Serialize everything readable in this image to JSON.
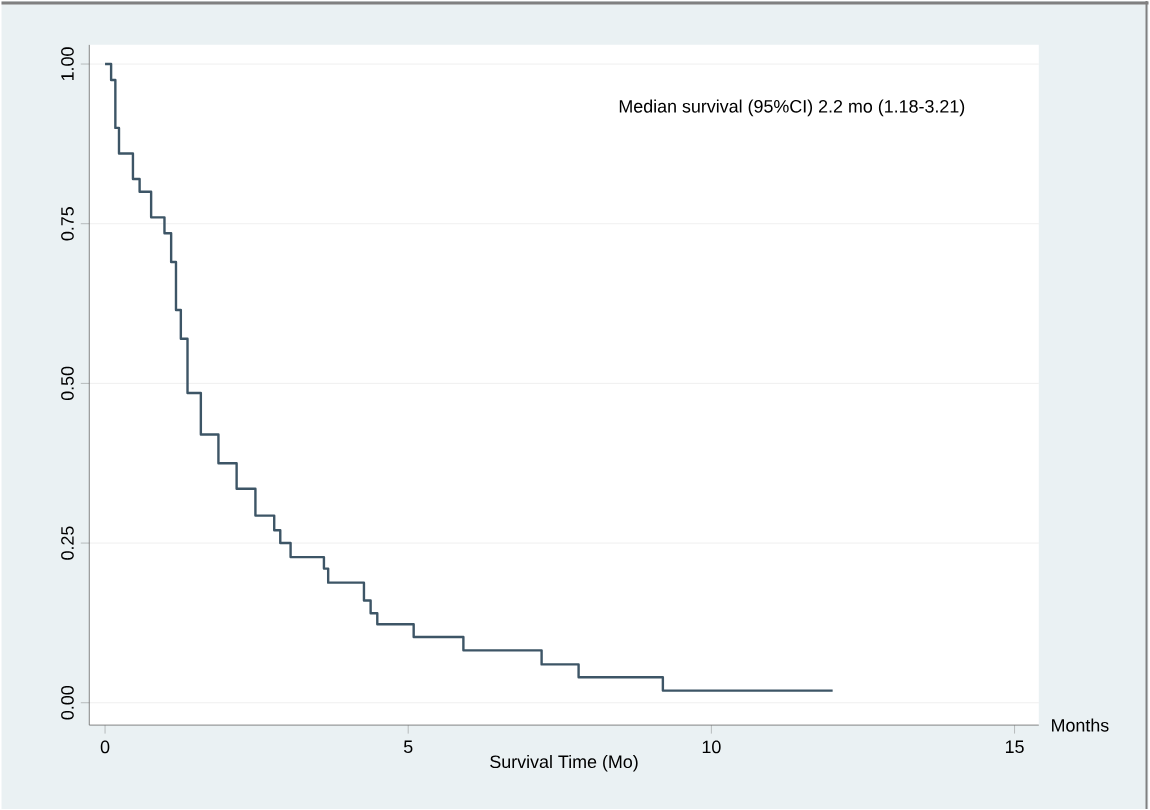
{
  "chart_data": {
    "type": "step",
    "x": [
      0,
      0.1,
      0.17,
      0.23,
      0.46,
      0.57,
      0.76,
      0.98,
      1.09,
      1.17,
      1.25,
      1.36,
      1.58,
      1.87,
      2.17,
      2.48,
      2.79,
      2.89,
      3.06,
      3.61,
      3.68,
      4.27,
      4.38,
      4.49,
      5.09,
      5.91,
      7.2,
      7.81,
      9.2,
      12.0
    ],
    "values": [
      1.0,
      0.975,
      0.9,
      0.86,
      0.82,
      0.8,
      0.76,
      0.735,
      0.69,
      0.615,
      0.57,
      0.485,
      0.42,
      0.375,
      0.335,
      0.293,
      0.27,
      0.25,
      0.228,
      0.21,
      0.188,
      0.16,
      0.14,
      0.123,
      0.103,
      0.082,
      0.06,
      0.04,
      0.019,
      0.019
    ],
    "color": "#3d5566",
    "xlabel": "Survival Time (Mo)",
    "xlim": [
      -0.26,
      15.4
    ],
    "xticks": [
      0,
      5,
      10,
      15
    ],
    "ylim": [
      -0.035,
      1.03
    ],
    "yticks": [
      {
        "value": 0,
        "label": "0.00"
      },
      {
        "value": 0.25,
        "label": "0.25"
      },
      {
        "value": 0.5,
        "label": "0.50"
      },
      {
        "value": 0.75,
        "label": "0.75"
      },
      {
        "value": 1,
        "label": "1.00"
      }
    ],
    "grid": "y",
    "annotations": [
      "Median survival (95%CI) 2.2 mo (1.18-3.21)",
      "Months"
    ]
  }
}
